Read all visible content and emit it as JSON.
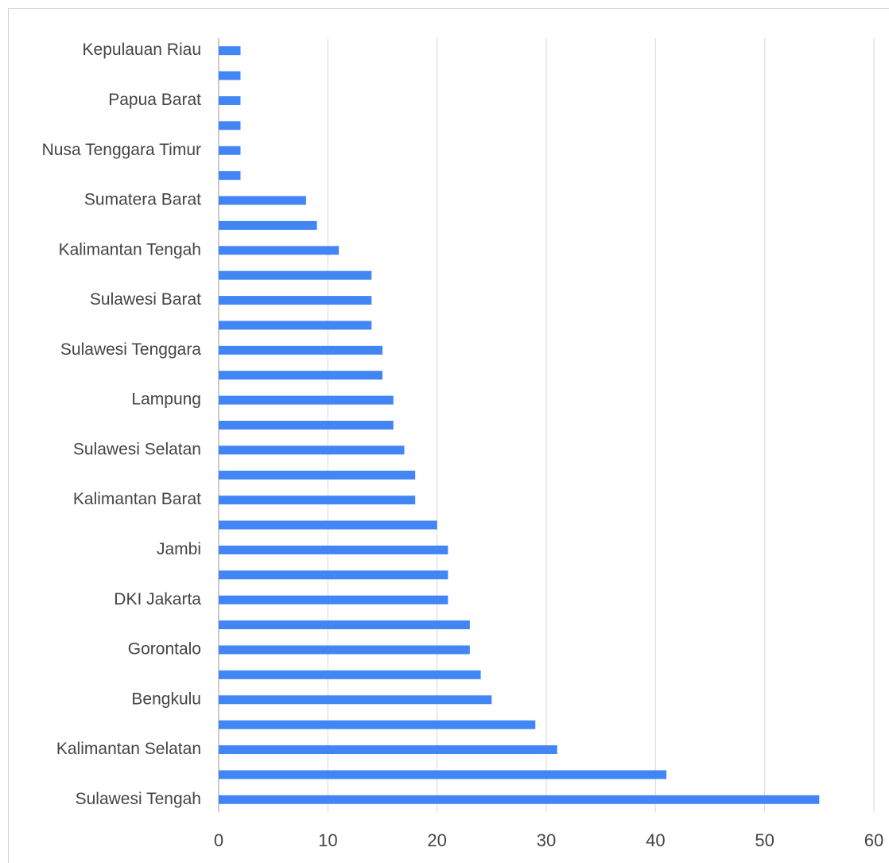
{
  "chart_data": {
    "type": "bar",
    "orientation": "horizontal",
    "categories": [
      "Kepulauan Riau",
      null,
      "Papua Barat",
      null,
      "Nusa Tenggara Timur",
      null,
      "Sumatera Barat",
      null,
      "Kalimantan Tengah",
      null,
      "Sulawesi Barat",
      null,
      "Sulawesi Tenggara",
      null,
      "Lampung",
      null,
      "Sulawesi Selatan",
      null,
      "Kalimantan Barat",
      null,
      "Jambi",
      null,
      "DKI Jakarta",
      null,
      "Gorontalo",
      null,
      "Bengkulu",
      null,
      "Kalimantan Selatan",
      null,
      "Sulawesi Tengah"
    ],
    "values": [
      2,
      2,
      2,
      2,
      2,
      2,
      8,
      9,
      11,
      14,
      14,
      14,
      15,
      15,
      16,
      16,
      17,
      18,
      18,
      20,
      21,
      21,
      21,
      23,
      23,
      24,
      25,
      29,
      31,
      41,
      55
    ],
    "color": "#4285f4",
    "xlim": [
      0,
      60
    ],
    "xticks": [
      0,
      10,
      20,
      30,
      40,
      50,
      60
    ],
    "grid": true
  }
}
